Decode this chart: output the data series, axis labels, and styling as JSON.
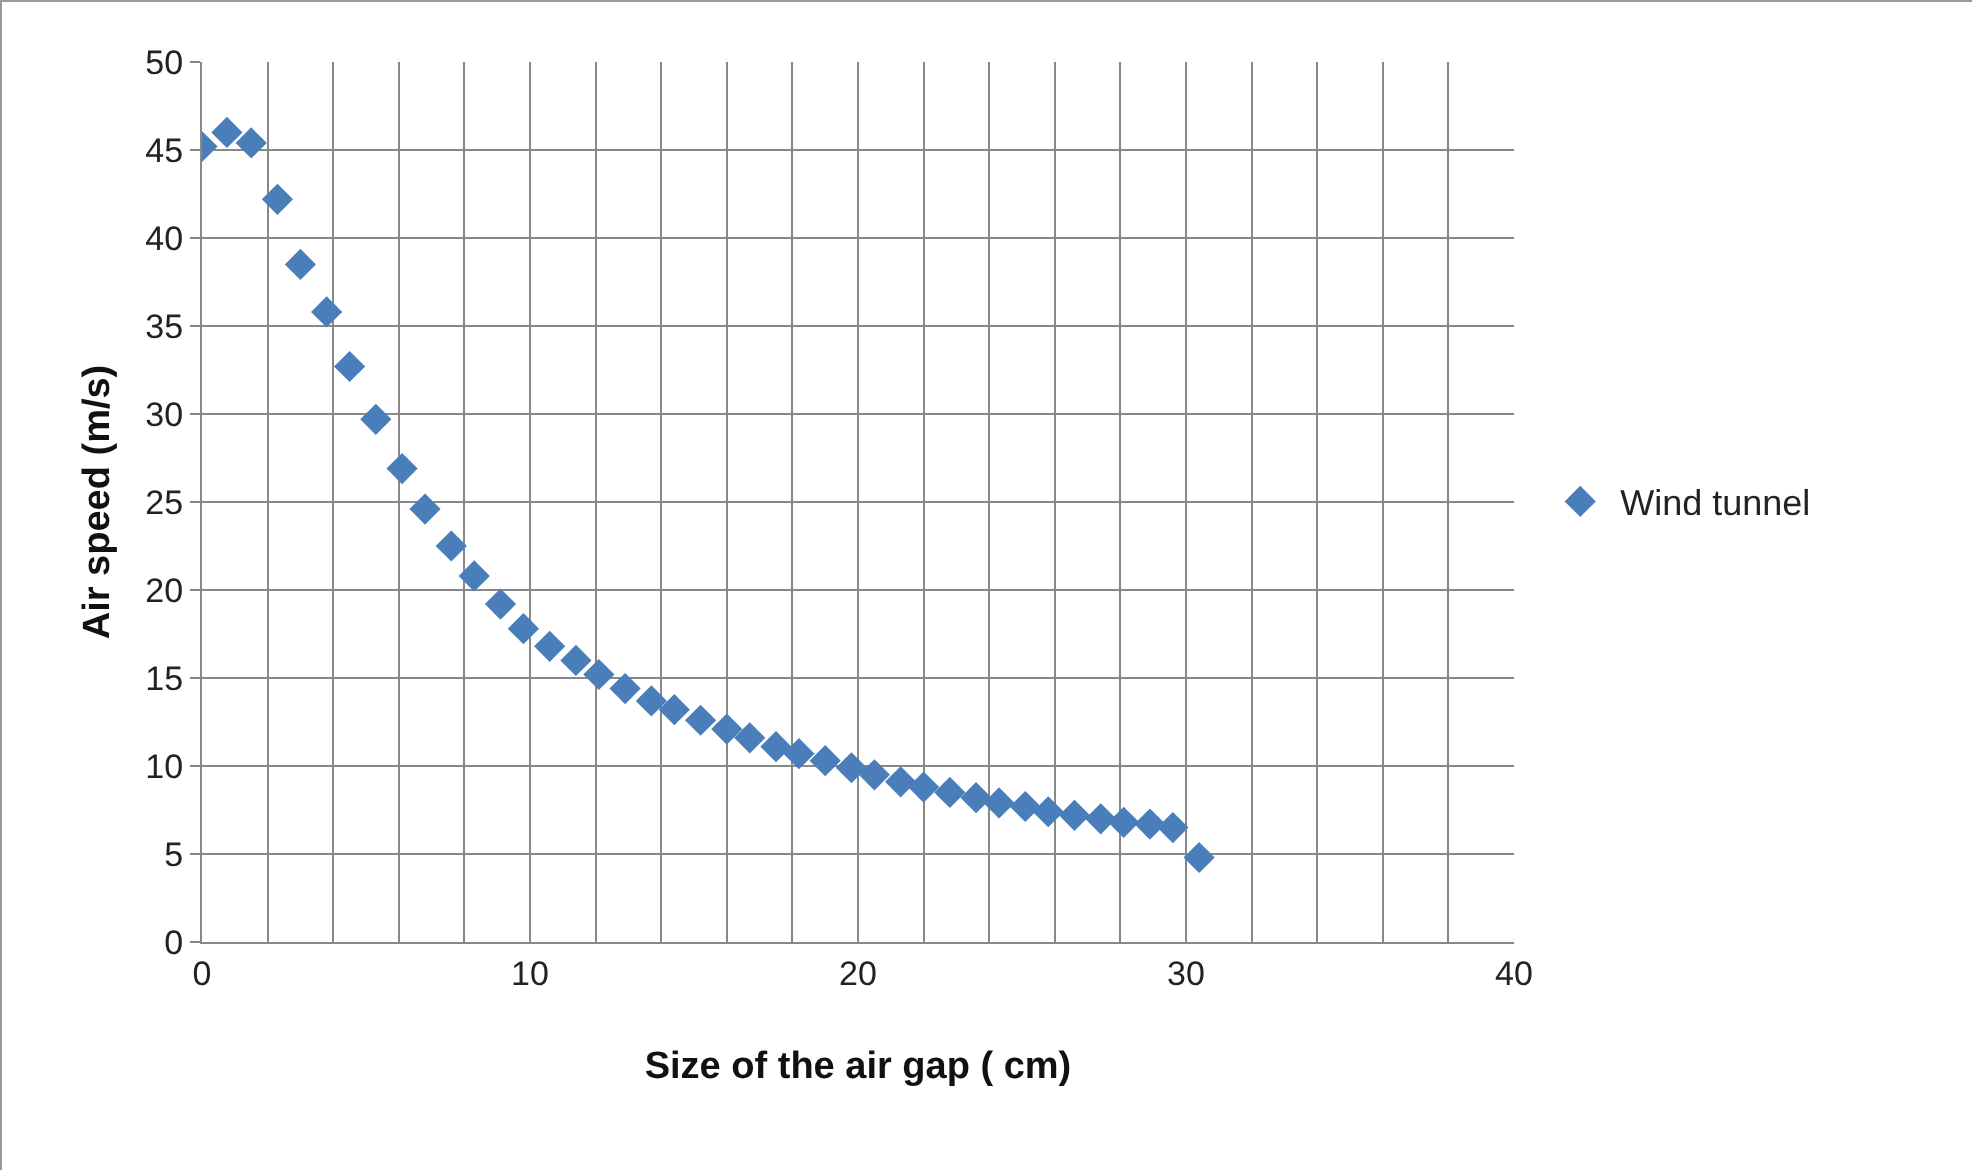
{
  "chart_data": {
    "type": "scatter",
    "xlabel": "Size of the air gap ( cm)",
    "ylabel": "Air speed (m/s)",
    "x": [
      0,
      0.76,
      1.5,
      2.3,
      3.0,
      3.8,
      4.5,
      5.3,
      6.1,
      6.8,
      7.6,
      8.3,
      9.1,
      9.8,
      10.6,
      11.4,
      12.1,
      12.9,
      13.7,
      14.4,
      15.2,
      16.0,
      16.7,
      17.5,
      18.2,
      19.0,
      19.8,
      20.5,
      21.3,
      22.0,
      22.8,
      23.6,
      24.3,
      25.1,
      25.8,
      26.6,
      27.4,
      28.1,
      28.9,
      29.6,
      30.4
    ],
    "series": [
      {
        "name": "Wind tunnel",
        "color": "#4a7ebb",
        "values": [
          45.2,
          46,
          45.4,
          42.2,
          38.5,
          35.8,
          32.7,
          29.7,
          26.9,
          24.6,
          22.5,
          20.8,
          19.2,
          17.8,
          16.8,
          16.0,
          15.2,
          14.4,
          13.7,
          13.2,
          12.6,
          12.1,
          11.6,
          11.1,
          10.7,
          10.3,
          9.9,
          9.5,
          9.1,
          8.8,
          8.5,
          8.2,
          7.9,
          7.7,
          7.4,
          7.2,
          7.0,
          6.8,
          6.7,
          6.5,
          4.8
        ]
      }
    ],
    "xlim": [
      0,
      40
    ],
    "xticks": [
      0,
      {
        "value": 2,
        "label": null
      },
      {
        "value": 4,
        "label": null
      },
      {
        "value": 6,
        "label": null
      },
      {
        "value": 8,
        "label": null
      },
      10,
      {
        "value": 12,
        "label": null
      },
      {
        "value": 14,
        "label": null
      },
      {
        "value": 16,
        "label": null
      },
      {
        "value": 18,
        "label": null
      },
      20,
      {
        "value": 22,
        "label": null
      },
      {
        "value": 24,
        "label": null
      },
      {
        "value": 26,
        "label": null
      },
      {
        "value": 28,
        "label": null
      },
      30,
      {
        "value": 32,
        "label": null
      },
      {
        "value": 34,
        "label": null
      },
      {
        "value": 36,
        "label": null
      },
      {
        "value": 38,
        "label": null
      },
      40
    ],
    "ylim": [
      0,
      50
    ],
    "yticks": [
      0,
      5,
      10,
      15,
      20,
      25,
      30,
      35,
      40,
      45,
      50
    ],
    "grid": true,
    "legend": "right",
    "marker": "diamond"
  }
}
